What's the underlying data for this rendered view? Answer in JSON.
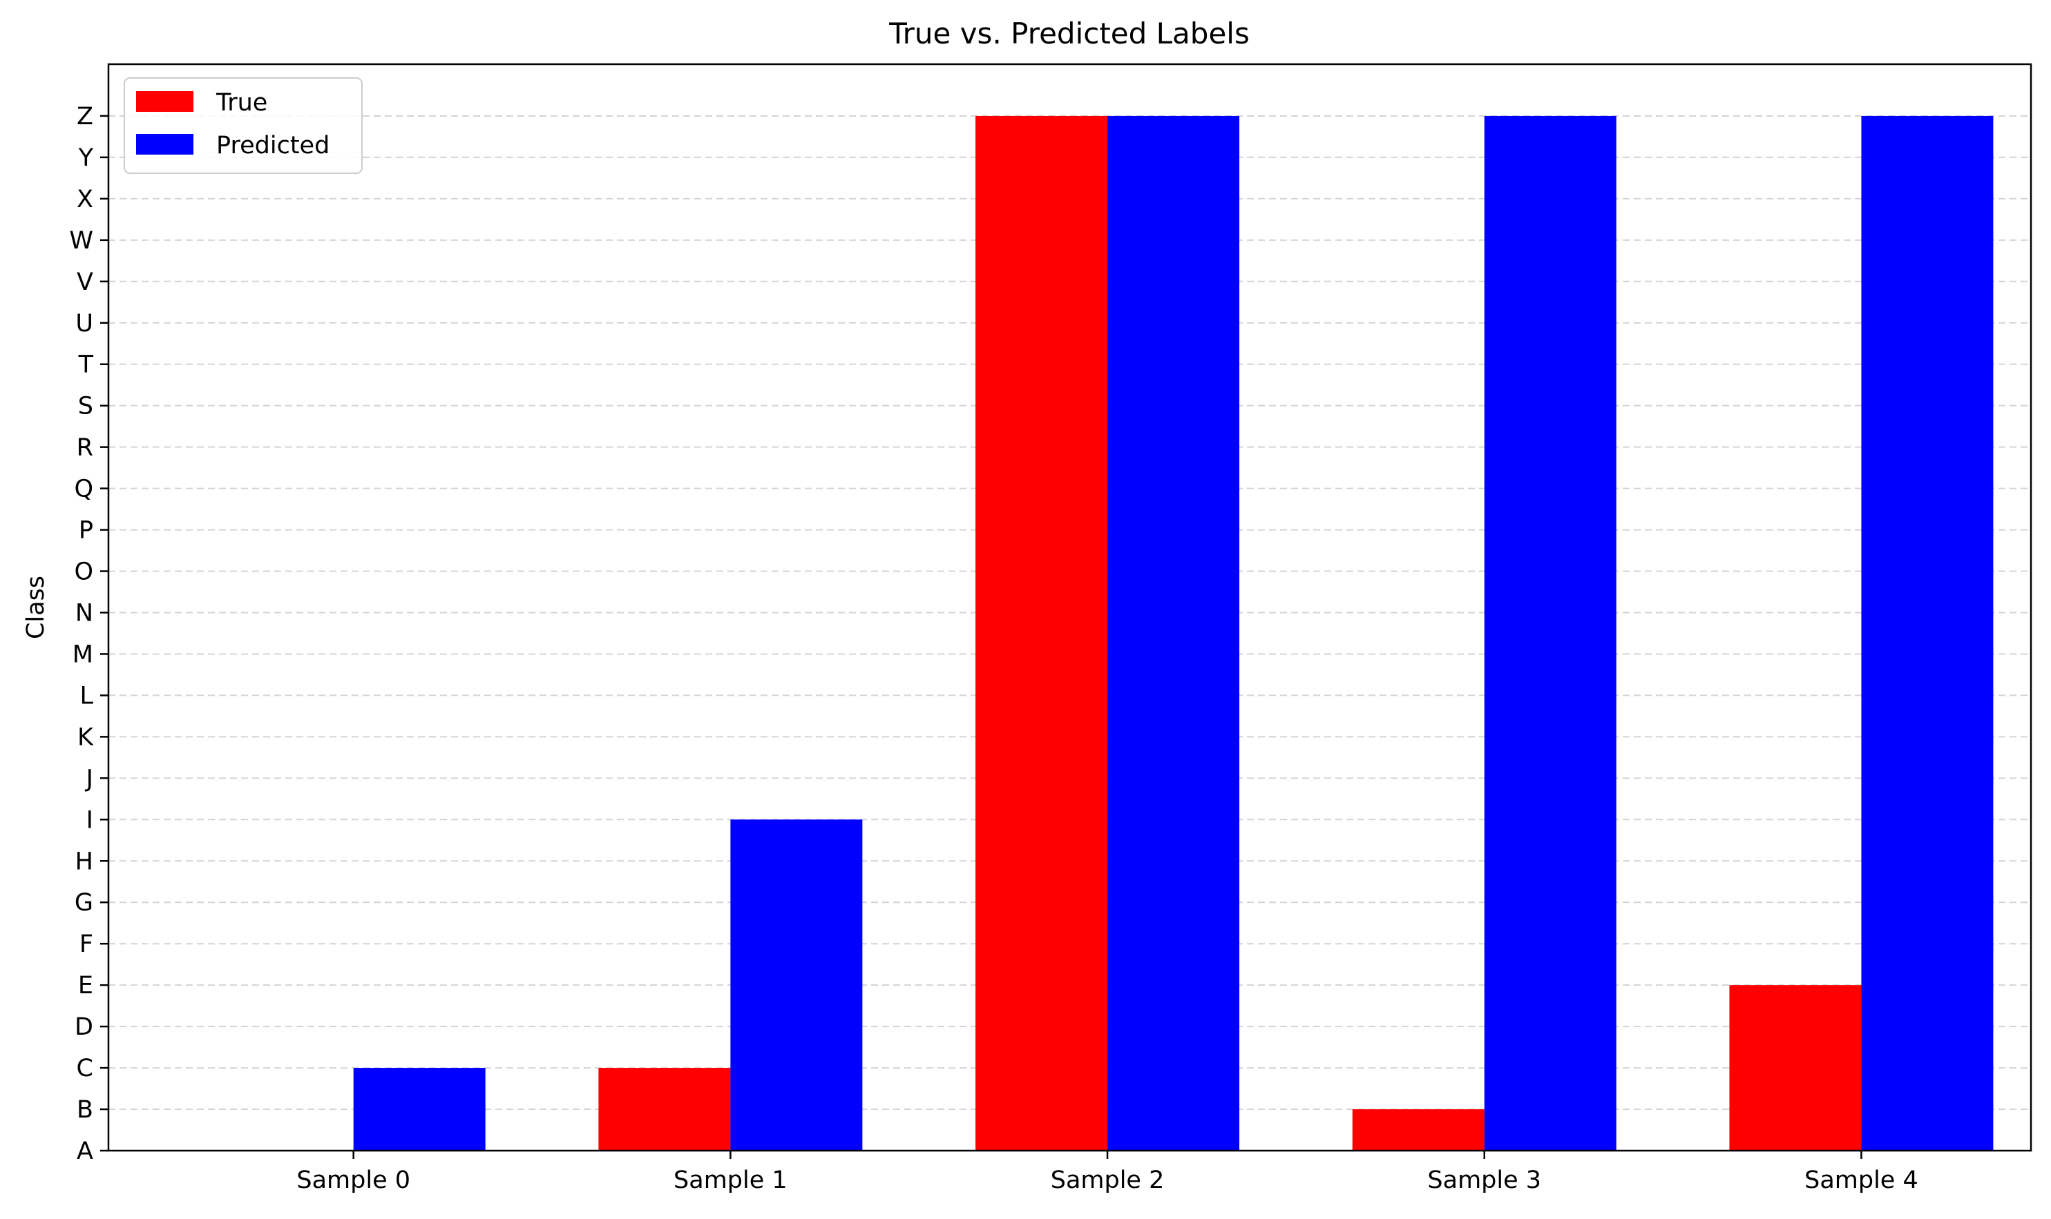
{
  "chart_data": {
    "type": "bar",
    "title": "True vs. Predicted Labels",
    "xlabel": "",
    "ylabel": "Class",
    "categories": [
      "Sample 0",
      "Sample 1",
      "Sample 2",
      "Sample 3",
      "Sample 4"
    ],
    "y_tick_labels": [
      "A",
      "B",
      "C",
      "D",
      "E",
      "F",
      "G",
      "H",
      "I",
      "J",
      "K",
      "L",
      "M",
      "N",
      "O",
      "P",
      "Q",
      "R",
      "S",
      "T",
      "U",
      "V",
      "W",
      "X",
      "Y",
      "Z"
    ],
    "ylim": [
      0,
      25
    ],
    "grid": "y-dashed",
    "legend_position": "top-left",
    "series": [
      {
        "name": "True",
        "color": "#ff0000",
        "values": [
          "A",
          "C",
          "Z",
          "B",
          "E"
        ]
      },
      {
        "name": "Predicted",
        "color": "#0000ff",
        "values": [
          "C",
          "I",
          "Z",
          "Z",
          "Z"
        ]
      }
    ]
  }
}
